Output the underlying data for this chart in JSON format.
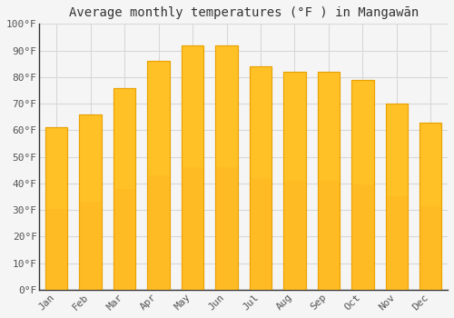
{
  "title": "Average monthly temperatures (°F ) in Mangawān",
  "months": [
    "Jan",
    "Feb",
    "Mar",
    "Apr",
    "May",
    "Jun",
    "Jul",
    "Aug",
    "Sep",
    "Oct",
    "Nov",
    "Dec"
  ],
  "values": [
    61,
    66,
    76,
    86,
    92,
    92,
    84,
    82,
    82,
    79,
    70,
    63
  ],
  "bar_color_top": "#FFC125",
  "bar_color_bottom": "#FFA020",
  "bar_edge_color": "#E8A000",
  "ylim": [
    0,
    100
  ],
  "yticks": [
    0,
    10,
    20,
    30,
    40,
    50,
    60,
    70,
    80,
    90,
    100
  ],
  "ytick_labels": [
    "0°F",
    "10°F",
    "20°F",
    "30°F",
    "40°F",
    "50°F",
    "60°F",
    "70°F",
    "80°F",
    "90°F",
    "100°F"
  ],
  "grid_color": "#d8d8d8",
  "bg_color": "#f5f5f5",
  "plot_bg_color": "#f5f5f5",
  "title_fontsize": 10,
  "tick_fontsize": 8,
  "font_family": "monospace",
  "spine_color": "#333333"
}
